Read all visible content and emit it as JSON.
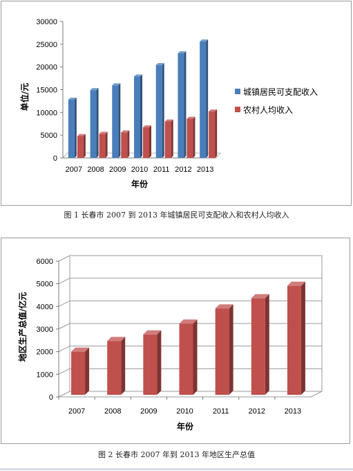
{
  "chart_data": [
    {
      "type": "bar",
      "title": "",
      "xlabel": "年份",
      "ylabel": "单位/元",
      "categories": [
        "2007",
        "2008",
        "2009",
        "2010",
        "2011",
        "2012",
        "2013"
      ],
      "series": [
        {
          "name": "城镇居民可支配收入",
          "values": [
            12800,
            14900,
            15950,
            17900,
            20400,
            23000,
            25600
          ],
          "color": "#4a7ebb"
        },
        {
          "name": "农村人均收入",
          "values": [
            4800,
            5300,
            5600,
            6700,
            8000,
            8600,
            10200
          ],
          "color": "#c0504d"
        }
      ],
      "ylim": [
        0,
        30000
      ],
      "yticks": [
        0,
        5000,
        10000,
        15000,
        20000,
        25000,
        30000
      ],
      "grid": false,
      "legend": "right",
      "style": "3d"
    },
    {
      "type": "bar",
      "title": "",
      "xlabel": "年份",
      "ylabel": "地区生产总值/亿元",
      "categories": [
        "2007",
        "2008",
        "2009",
        "2010",
        "2011",
        "2012",
        "2013"
      ],
      "series": [
        {
          "values": [
            2090,
            2560,
            2850,
            3330,
            4000,
            4450,
            5000
          ],
          "color": "#c0504d"
        }
      ],
      "ylim": [
        0,
        6000
      ],
      "yticks": [
        0,
        1000,
        2000,
        3000,
        4000,
        5000,
        6000
      ],
      "grid": true,
      "legend": "none",
      "style": "3d"
    }
  ],
  "captions": [
    "图 1 长春市 2007 到 2013 年城镇居民可支配收入和农村人均收入",
    "图 2 长春市 2007 年到 2013 年地区生产总值"
  ]
}
